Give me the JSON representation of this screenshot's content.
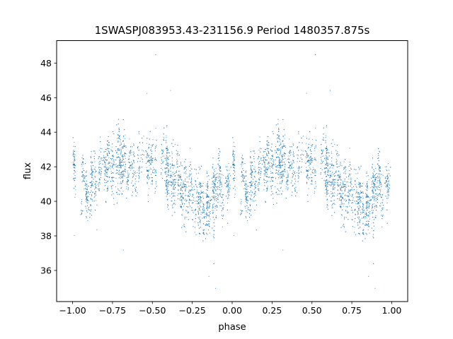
{
  "chart_data": {
    "type": "scatter",
    "title": "1SWASPJ083953.43-231156.9 Period 1480357.875s",
    "xlabel": "phase",
    "ylabel": "flux",
    "xlim": [
      -1.1,
      1.1
    ],
    "ylim": [
      34.2,
      49.3
    ],
    "xticks": [
      -1.0,
      -0.75,
      -0.5,
      -0.25,
      0.0,
      0.25,
      0.5,
      0.75,
      1.0
    ],
    "xtick_labels": [
      "−1.00",
      "−0.75",
      "−0.50",
      "−0.25",
      "0.00",
      "0.25",
      "0.50",
      "0.75",
      "1.00"
    ],
    "yticks": [
      36,
      38,
      40,
      42,
      44,
      46,
      48
    ],
    "ytick_labels": [
      "36",
      "38",
      "40",
      "42",
      "44",
      "46",
      "48"
    ],
    "grid": false,
    "legend": "none",
    "marker_color": "#1f77b4",
    "profile": {
      "phase": [
        0.0,
        0.05,
        0.1,
        0.15,
        0.2,
        0.25,
        0.3,
        0.35,
        0.4,
        0.45,
        0.5,
        0.55,
        0.6,
        0.65,
        0.7,
        0.75,
        0.8,
        0.85,
        0.9,
        0.95,
        1.0
      ],
      "flux_mean": [
        41.0,
        40.8,
        40.7,
        41.2,
        41.6,
        42.2,
        42.3,
        42.0,
        42.3,
        42.7,
        42.6,
        42.3,
        41.8,
        41.2,
        40.8,
        40.3,
        39.6,
        40.1,
        40.6,
        40.9,
        41.0
      ],
      "flux_spread": [
        1.5,
        1.5,
        1.6,
        1.8,
        1.8,
        1.9,
        1.9,
        1.8,
        1.8,
        1.9,
        2.0,
        2.0,
        1.9,
        2.1,
        2.3,
        2.3,
        2.1,
        2.0,
        1.8,
        1.6,
        1.5
      ]
    },
    "note_series": "phase-folded light curve shown twice (phase -1 to 1)"
  }
}
